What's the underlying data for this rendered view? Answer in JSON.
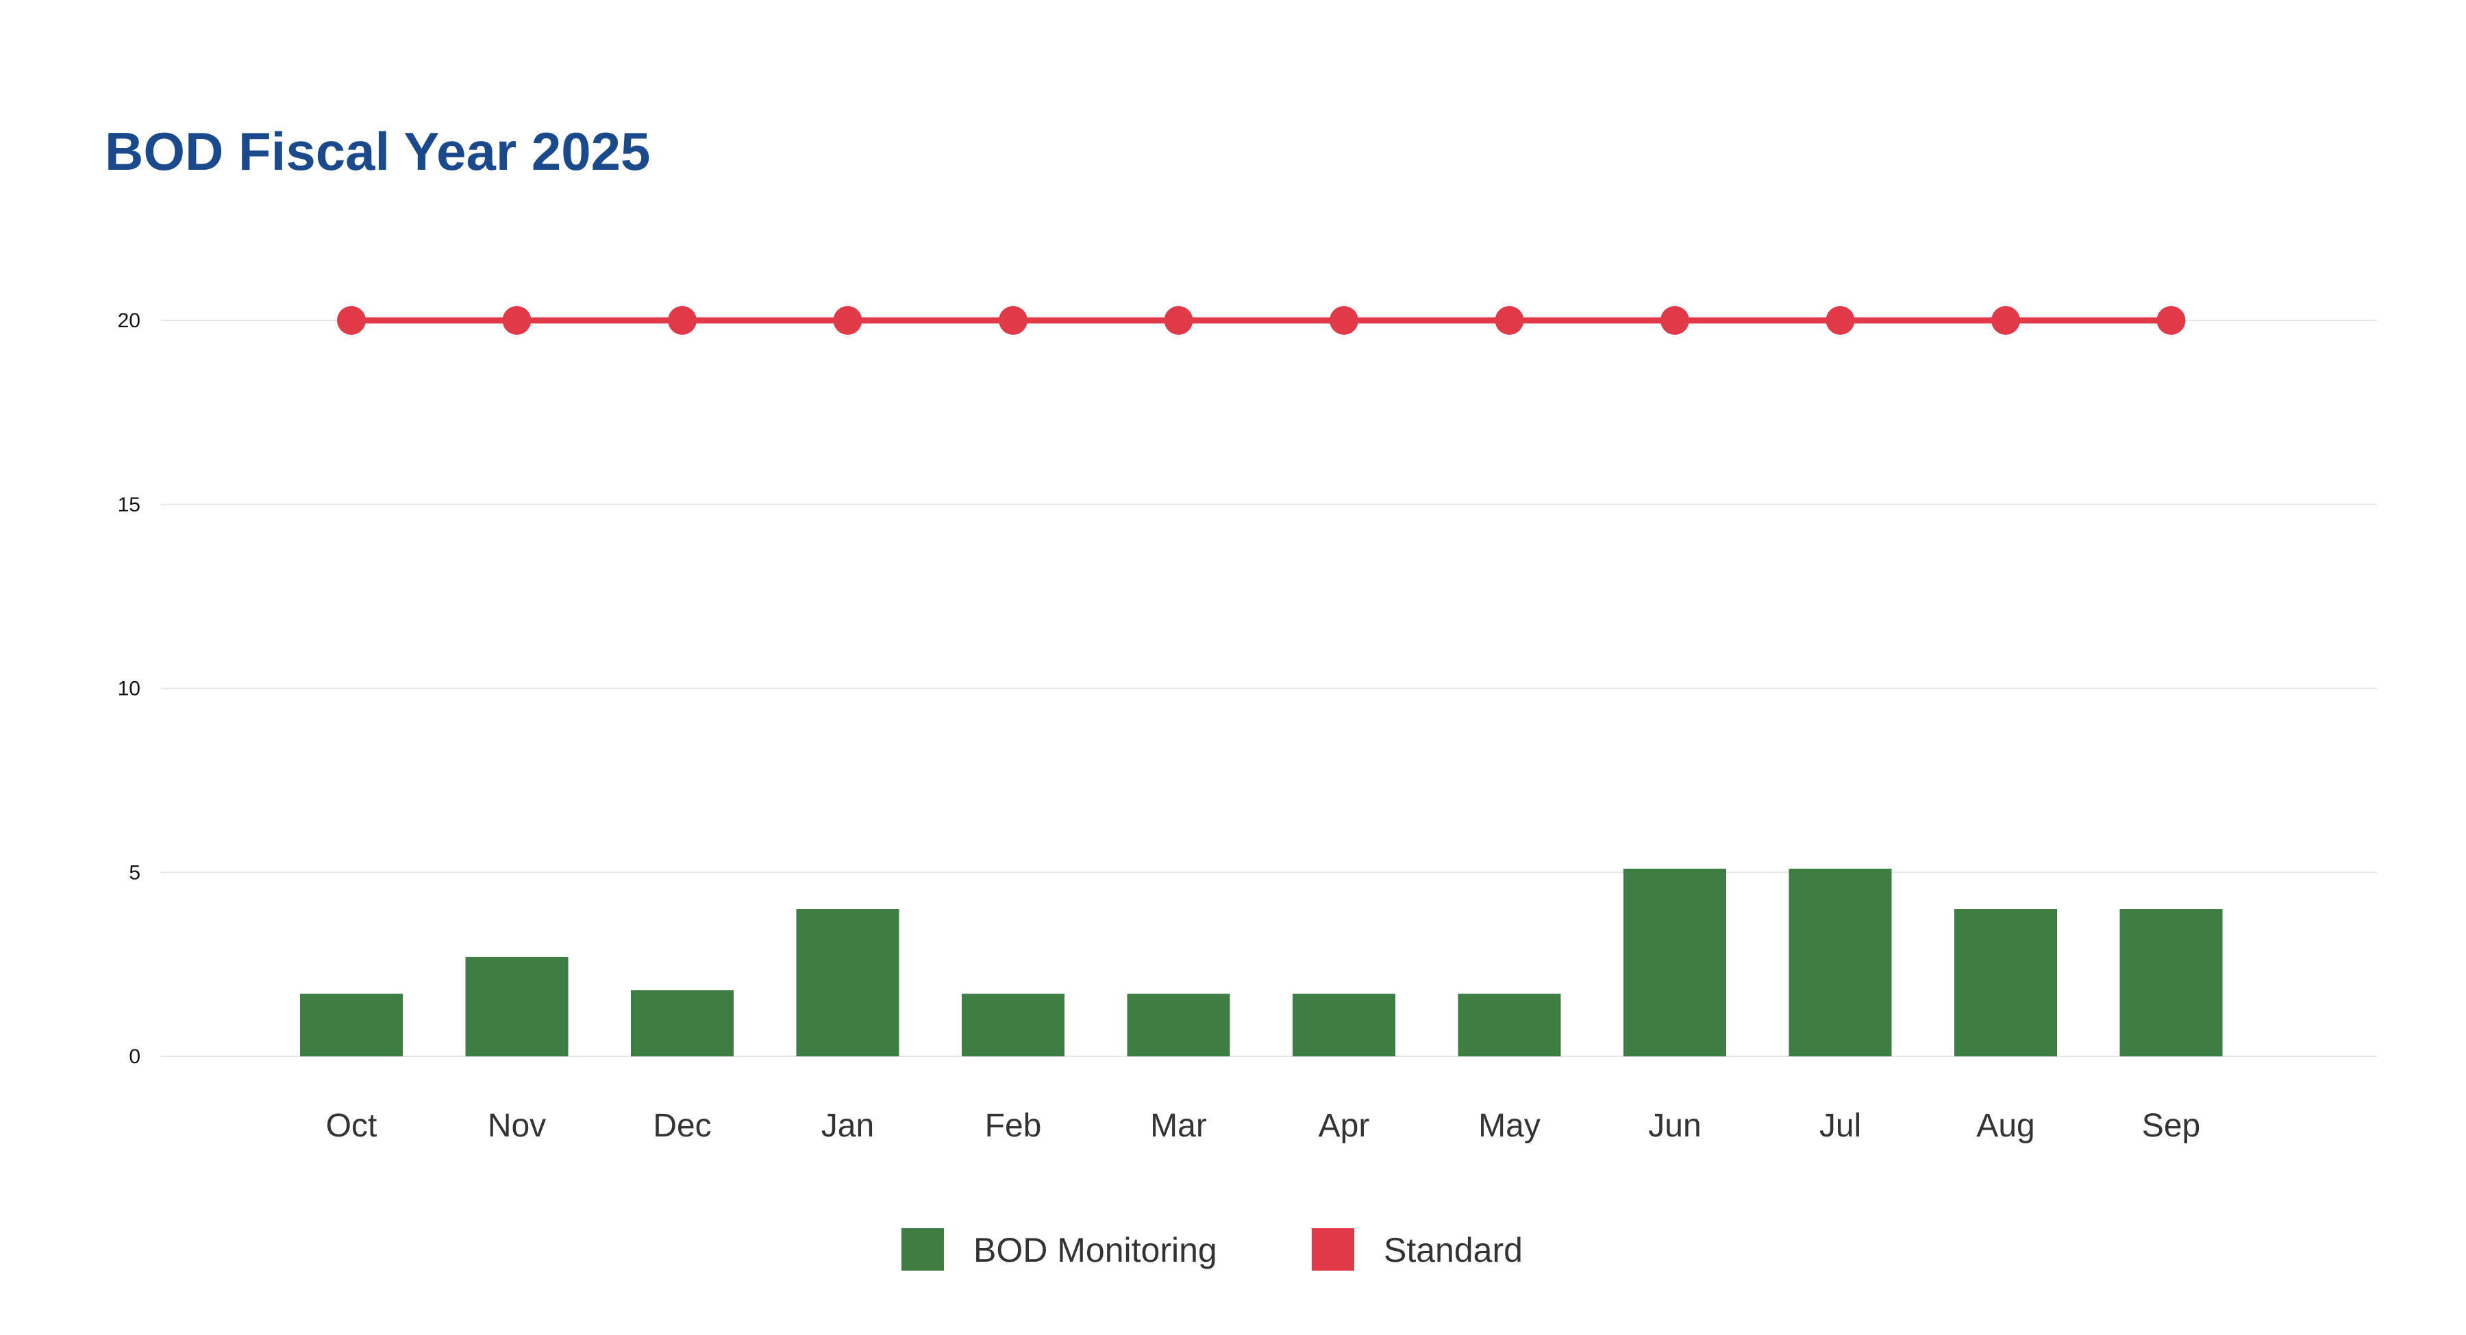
{
  "chart_data": {
    "type": "bar",
    "title": "BOD Fiscal Year 2025",
    "xlabel": "",
    "ylabel": "",
    "categories": [
      "Oct",
      "Nov",
      "Dec",
      "Jan",
      "Feb",
      "Mar",
      "Apr",
      "May",
      "Jun",
      "Jul",
      "Aug",
      "Sep"
    ],
    "ylim": [
      0,
      20
    ],
    "yticks": [
      0,
      5,
      10,
      15,
      20
    ],
    "grid": true,
    "legend_position": "bottom-center",
    "series": [
      {
        "name": "BOD Monitoring",
        "type": "bar",
        "color": "#3e7d44",
        "values": [
          1.7,
          2.7,
          1.8,
          4.0,
          1.7,
          1.7,
          1.7,
          1.7,
          5.1,
          5.1,
          4.0,
          4.0
        ]
      },
      {
        "name": "Standard",
        "type": "line",
        "color": "#e03a49",
        "values": [
          20,
          20,
          20,
          20,
          20,
          20,
          20,
          20,
          20,
          20,
          20,
          20
        ]
      }
    ]
  },
  "colors": {
    "title": "#1b4a8c",
    "grid": "#e6e6e6"
  }
}
